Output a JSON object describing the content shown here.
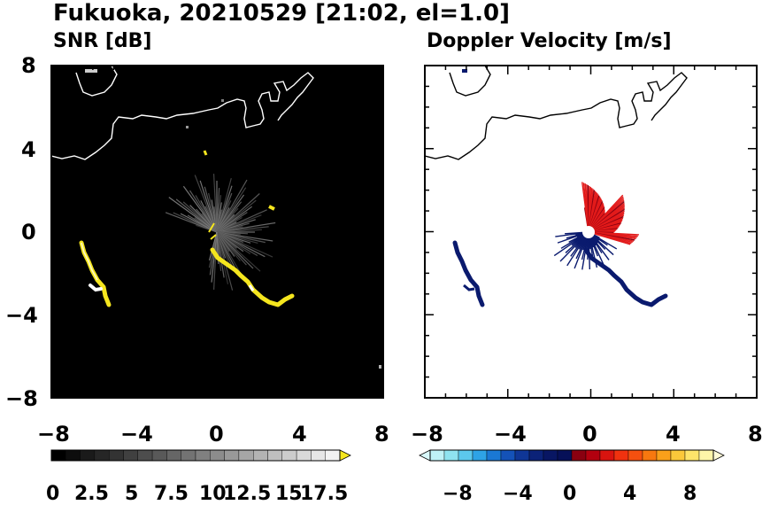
{
  "title": "Fukuoka, 20210529 [21:02, el=1.0]",
  "colors": {
    "snr_background": "#000000",
    "coastline_on_dark": "#ffffff",
    "coastline_on_light": "#000000",
    "echo_high": "#f5e61e",
    "echo_bright": "#ffffff",
    "receding": "#e21a1a",
    "approaching": "#0a1a6e"
  },
  "chart_data": [
    {
      "type": "heatmap",
      "title": "SNR [dB]",
      "xlim": [
        -8,
        8
      ],
      "ylim": [
        -8,
        8
      ],
      "x_ticks": [
        "−8",
        "−4",
        "0",
        "4",
        "8"
      ],
      "y_ticks": [
        "8",
        "4",
        "0",
        "−4",
        "−8"
      ],
      "colorbar": {
        "range": [
          0,
          20
        ],
        "ticks": [
          "0",
          "2.5",
          "5",
          "7.5",
          "10",
          "12.5",
          "15",
          "17.5"
        ],
        "extend": "max",
        "colors": [
          "#000000",
          "#0d0d0d",
          "#1a1a1a",
          "#262626",
          "#333333",
          "#404040",
          "#4d4d4d",
          "#595959",
          "#666666",
          "#737373",
          "#808080",
          "#8c8c8c",
          "#999999",
          "#a6a6a6",
          "#b3b3b3",
          "#bfbfbf",
          "#cccccc",
          "#d9d9d9",
          "#e6e6e6",
          "#f2f2f2"
        ],
        "extend_color": "#f5e61e"
      }
    },
    {
      "type": "heatmap",
      "title": "Doppler Velocity [m/s]",
      "xlim": [
        -8,
        8
      ],
      "ylim": [
        -8,
        8
      ],
      "x_ticks": [
        "−8",
        "−4",
        "0",
        "4",
        "8"
      ],
      "y_ticks": [],
      "colorbar": {
        "range": [
          -10,
          10
        ],
        "ticks": [
          "−8",
          "−4",
          "0",
          "4",
          "8"
        ],
        "extend": "both",
        "colors": [
          "#bff2f7",
          "#8fe3f0",
          "#5cc8ec",
          "#2ea3e6",
          "#1a78d4",
          "#1452b8",
          "#0f3696",
          "#0b2278",
          "#081663",
          "#061058",
          "#8a0010",
          "#b3000f",
          "#d9140f",
          "#f0320f",
          "#f5500f",
          "#f7780f",
          "#f9a01a",
          "#fbc83a",
          "#fde46a",
          "#fef5a8"
        ],
        "extend_low_color": "#d8f8fb",
        "extend_high_color": "#fffbd6"
      }
    }
  ]
}
